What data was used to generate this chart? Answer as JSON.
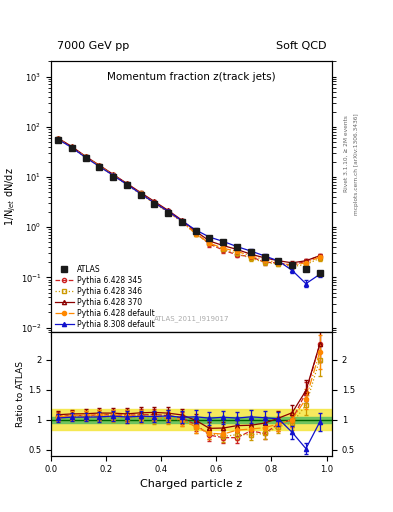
{
  "title_top": "Momentum fraction z(track jets)",
  "header_left": "7000 GeV pp",
  "header_right": "Soft QCD",
  "ylabel_main": "1/N$_{jet}$ dN/dz",
  "ylabel_ratio": "Ratio to ATLAS",
  "xlabel": "Charged particle z",
  "watermark": "ATLAS_2011_I919017",
  "right_label1": "Rivet 3.1.10, ≥ 2M events",
  "right_label2": "mcplots.cern.ch [arXiv:1306.3436]",
  "ylim_main": [
    0.008,
    2000
  ],
  "ylim_ratio": [
    0.4,
    2.45
  ],
  "xlim": [
    0.0,
    1.02
  ],
  "z_points": [
    0.025,
    0.075,
    0.125,
    0.175,
    0.225,
    0.275,
    0.325,
    0.375,
    0.425,
    0.475,
    0.525,
    0.575,
    0.625,
    0.675,
    0.725,
    0.775,
    0.825,
    0.875,
    0.925,
    0.975
  ],
  "atlas_y": [
    55.0,
    37.0,
    23.5,
    15.5,
    10.2,
    6.8,
    4.4,
    2.9,
    1.95,
    1.28,
    0.84,
    0.62,
    0.5,
    0.4,
    0.32,
    0.26,
    0.21,
    0.175,
    0.145,
    0.12
  ],
  "atlas_yerr": [
    2.5,
    1.8,
    1.2,
    0.9,
    0.6,
    0.45,
    0.28,
    0.18,
    0.13,
    0.09,
    0.06,
    0.045,
    0.036,
    0.029,
    0.024,
    0.019,
    0.016,
    0.013,
    0.011,
    0.009
  ],
  "p6_345_y": [
    58.0,
    39.5,
    25.0,
    16.8,
    11.0,
    7.3,
    4.75,
    3.15,
    2.08,
    1.32,
    0.77,
    0.46,
    0.35,
    0.28,
    0.26,
    0.2,
    0.195,
    0.175,
    0.21,
    0.27
  ],
  "p6_346_y": [
    56.5,
    38.5,
    24.5,
    16.2,
    10.6,
    7.0,
    4.55,
    2.95,
    1.98,
    1.27,
    0.74,
    0.48,
    0.36,
    0.3,
    0.24,
    0.2,
    0.185,
    0.165,
    0.18,
    0.24
  ],
  "p6_370_y": [
    59.5,
    40.5,
    25.8,
    17.2,
    11.3,
    7.45,
    4.9,
    3.25,
    2.16,
    1.38,
    0.83,
    0.53,
    0.43,
    0.36,
    0.29,
    0.245,
    0.215,
    0.195,
    0.215,
    0.27
  ],
  "p6_def_y": [
    57.5,
    39.5,
    25.2,
    16.7,
    11.0,
    7.2,
    4.7,
    3.05,
    2.02,
    1.28,
    0.74,
    0.48,
    0.38,
    0.33,
    0.27,
    0.225,
    0.195,
    0.175,
    0.195,
    0.255
  ],
  "p8_def_y": [
    56.5,
    38.5,
    24.5,
    16.2,
    10.8,
    7.1,
    4.65,
    3.05,
    2.07,
    1.33,
    0.88,
    0.635,
    0.52,
    0.41,
    0.335,
    0.268,
    0.213,
    0.138,
    0.075,
    0.115
  ],
  "p6_345_yerr": [
    2.5,
    1.8,
    1.2,
    0.85,
    0.6,
    0.42,
    0.28,
    0.19,
    0.13,
    0.09,
    0.065,
    0.048,
    0.037,
    0.03,
    0.025,
    0.02,
    0.018,
    0.016,
    0.02,
    0.028
  ],
  "p6_346_yerr": [
    2.5,
    1.8,
    1.2,
    0.85,
    0.6,
    0.42,
    0.28,
    0.19,
    0.13,
    0.09,
    0.065,
    0.048,
    0.037,
    0.03,
    0.025,
    0.02,
    0.018,
    0.016,
    0.02,
    0.028
  ],
  "p6_370_yerr": [
    2.5,
    1.8,
    1.2,
    0.85,
    0.6,
    0.42,
    0.28,
    0.19,
    0.13,
    0.09,
    0.065,
    0.048,
    0.037,
    0.03,
    0.025,
    0.02,
    0.018,
    0.016,
    0.02,
    0.028
  ],
  "p6_def_yerr": [
    2.5,
    1.8,
    1.2,
    0.85,
    0.6,
    0.42,
    0.28,
    0.19,
    0.13,
    0.09,
    0.065,
    0.048,
    0.037,
    0.03,
    0.025,
    0.02,
    0.018,
    0.016,
    0.02,
    0.028
  ],
  "p8_def_yerr": [
    2.5,
    1.8,
    1.2,
    0.85,
    0.6,
    0.42,
    0.28,
    0.19,
    0.13,
    0.09,
    0.065,
    0.048,
    0.037,
    0.03,
    0.025,
    0.02,
    0.018,
    0.016,
    0.012,
    0.015
  ],
  "color_atlas": "#1a1a1a",
  "color_345": "#cc2222",
  "color_346": "#cc9900",
  "color_370": "#8b0000",
  "color_def6": "#ff8800",
  "color_def8": "#1111cc",
  "band_green": [
    0.95,
    1.05
  ],
  "band_yellow": [
    0.82,
    1.18
  ]
}
